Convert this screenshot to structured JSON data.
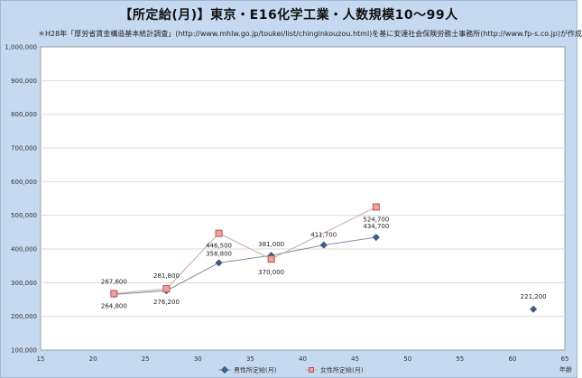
{
  "title": "【所定給(月)】東京・E16化学工業・人数規模10～99人",
  "subtitle": "＊H28年「厚労省賃金構造基本統計調査」(http://www.mhlw.go.jp/toukei/list/chinginkouzou.html)を基に安達社会保険労務士事務所(http://www.fp-s.co.jp)が作成",
  "chart_data": {
    "type": "line",
    "xlabel": "年齢",
    "ylabel": "",
    "xlim": [
      15,
      65
    ],
    "ylim": [
      100000,
      1000000
    ],
    "x_ticks": [
      "15",
      "20",
      "25",
      "30",
      "35",
      "40",
      "45",
      "50",
      "55",
      "60",
      "65"
    ],
    "y_ticks": [
      "1,000,000",
      "900,000",
      "800,000",
      "700,000",
      "600,000",
      "500,000",
      "400,000",
      "300,000",
      "200,000",
      "100,000"
    ],
    "grid": true,
    "legend_position": "bottom",
    "series": [
      {
        "name": "男性所定給(月)",
        "color": "#3f5f8f",
        "marker": "diamond",
        "points": [
          {
            "x": 22,
            "y": 264800,
            "label": "264,800"
          },
          {
            "x": 27,
            "y": 276200,
            "label": "276,200"
          },
          {
            "x": 32,
            "y": 358800,
            "label": "358,800"
          },
          {
            "x": 37,
            "y": 381000,
            "label": "381,000"
          },
          {
            "x": 42,
            "y": 411700,
            "label": "411,700"
          },
          {
            "x": 47,
            "y": 434700,
            "label": "434,700"
          },
          {
            "x": 62,
            "y": 221200,
            "label": "221,200",
            "connected": false
          }
        ]
      },
      {
        "name": "女性所定給(月)",
        "color": "#c0504d",
        "marker": "square",
        "points": [
          {
            "x": 22,
            "y": 267600,
            "label": "267,600"
          },
          {
            "x": 27,
            "y": 281800,
            "label": "281,800"
          },
          {
            "x": 32,
            "y": 446500,
            "label": "446,500"
          },
          {
            "x": 37,
            "y": 370000,
            "label": "370,000"
          },
          {
            "x": 47,
            "y": 524700,
            "label": "524,700"
          }
        ]
      }
    ]
  }
}
